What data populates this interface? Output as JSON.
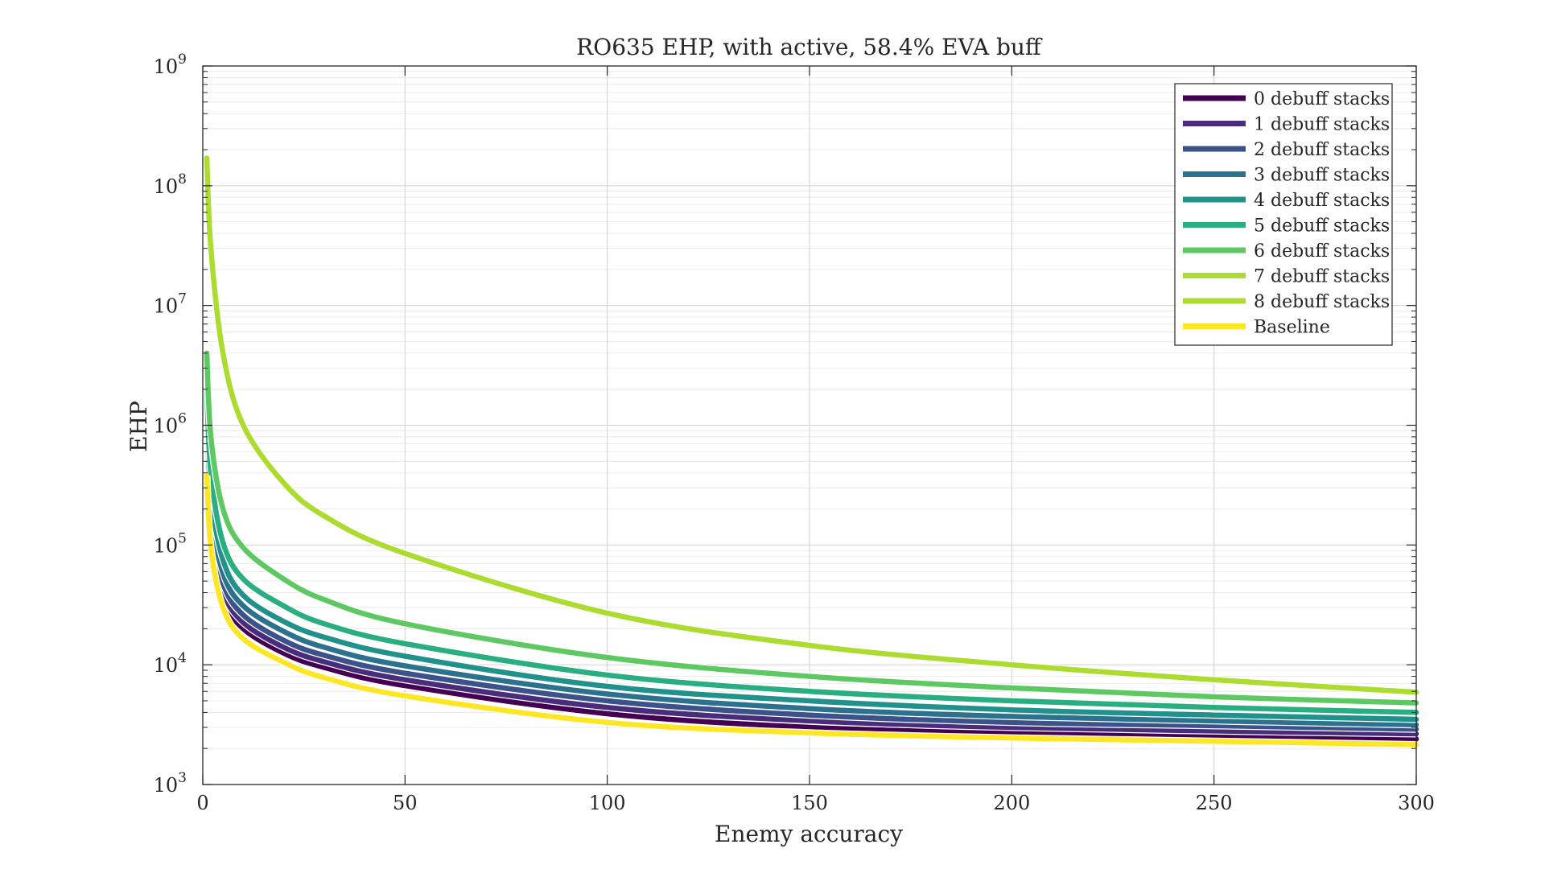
{
  "chart_data": {
    "type": "line",
    "title": "RO635 EHP, with active, 58.4% EVA buff",
    "xlabel": "Enemy accuracy",
    "ylabel": "EHP",
    "xlim": [
      0,
      300
    ],
    "ylim": [
      1000,
      1000000000
    ],
    "yscale": "log",
    "grid": true,
    "minor_grid": true,
    "legend_position": "top-right",
    "x_ticks": [
      0,
      50,
      100,
      150,
      200,
      250,
      300
    ],
    "y_ticks": [
      {
        "value": 1000,
        "mantissa": "10",
        "exponent": "3"
      },
      {
        "value": 10000,
        "mantissa": "10",
        "exponent": "4"
      },
      {
        "value": 100000,
        "mantissa": "10",
        "exponent": "5"
      },
      {
        "value": 1000000,
        "mantissa": "10",
        "exponent": "6"
      },
      {
        "value": 10000000,
        "mantissa": "10",
        "exponent": "7"
      },
      {
        "value": 100000000,
        "mantissa": "10",
        "exponent": "8"
      },
      {
        "value": 1000000000,
        "mantissa": "10",
        "exponent": "9"
      }
    ],
    "x": [
      1,
      2,
      5,
      10,
      20,
      30,
      50,
      100,
      150,
      200,
      250,
      300
    ],
    "series": [
      {
        "name": "0 debuff stacks",
        "color": "#440154",
        "values": [
          430000,
          110000,
          36000,
          20000,
          12500,
          9500,
          6700,
          3900,
          3000,
          2700,
          2550,
          2400
        ]
      },
      {
        "name": "1 debuff stacks",
        "color": "#472D7B",
        "values": [
          520000,
          130000,
          41000,
          22500,
          14000,
          10600,
          7500,
          4400,
          3400,
          3000,
          2800,
          2650
        ]
      },
      {
        "name": "2 debuff stacks",
        "color": "#3B528B",
        "values": [
          650000,
          160000,
          48000,
          26000,
          16000,
          12000,
          8500,
          5000,
          3800,
          3300,
          3100,
          2900
        ]
      },
      {
        "name": "3 debuff stacks",
        "color": "#2C728E",
        "values": [
          850000,
          200000,
          58000,
          31000,
          19000,
          14000,
          9800,
          5700,
          4300,
          3700,
          3400,
          3150
        ]
      },
      {
        "name": "4 debuff stacks",
        "color": "#21918C",
        "values": [
          1300000,
          270000,
          75000,
          38000,
          23000,
          17000,
          11800,
          6600,
          5000,
          4200,
          3800,
          3500
        ]
      },
      {
        "name": "5 debuff stacks",
        "color": "#28AE80",
        "values": [
          2000000,
          400000,
          105000,
          52000,
          31000,
          22000,
          15000,
          8200,
          6000,
          5000,
          4400,
          4000
        ]
      },
      {
        "name": "6 debuff stacks",
        "color": "#5EC962",
        "values": [
          4000000,
          800000,
          200000,
          95000,
          52000,
          35000,
          22000,
          11500,
          8000,
          6400,
          5400,
          4800
        ]
      },
      {
        "name": "7 debuff stacks",
        "color": "#ADDC30",
        "values": [
          170000000,
          30000000,
          4000000,
          1000000,
          330000,
          175000,
          85000,
          27000,
          14500,
          10000,
          7500,
          5900
        ]
      },
      {
        "name": "8 debuff stacks",
        "color": "#ADDC30",
        "values": [
          170000000,
          30000000,
          4000000,
          1000000,
          330000,
          175000,
          85000,
          27000,
          14500,
          10000,
          7500,
          5900
        ]
      },
      {
        "name": "Baseline",
        "color": "#FDE725",
        "values": [
          380000,
          95000,
          30000,
          16500,
          10500,
          7800,
          5500,
          3300,
          2700,
          2450,
          2300,
          2150
        ]
      }
    ]
  }
}
